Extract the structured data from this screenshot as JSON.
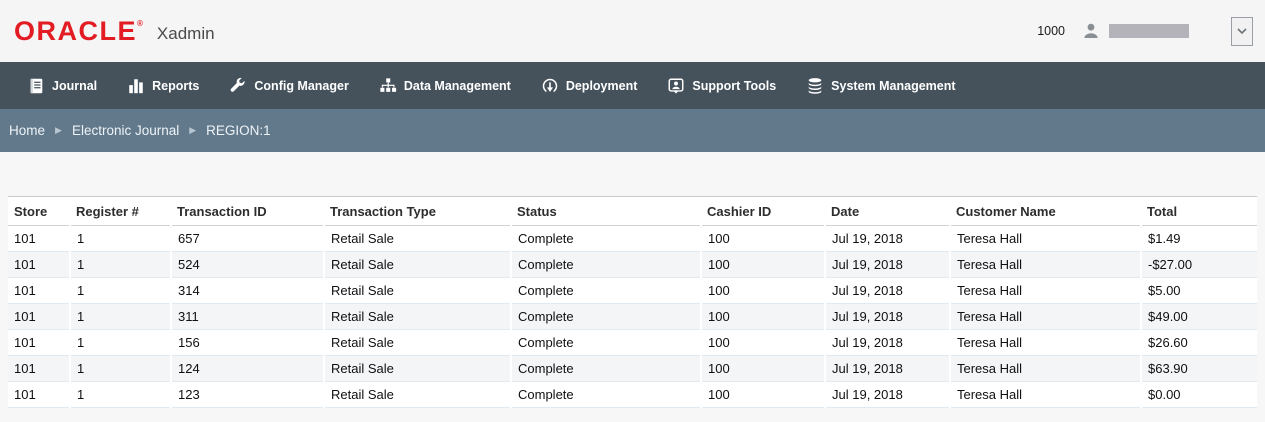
{
  "header": {
    "logo_text": "ORACLE",
    "logo_registered": "®",
    "app_name": "Xadmin",
    "org_id": "1000",
    "user_icon": "person-icon",
    "dropdown_icon": "chevron-down-icon"
  },
  "nav": {
    "items": [
      {
        "label": "Journal",
        "icon": "journal-icon"
      },
      {
        "label": "Reports",
        "icon": "reports-icon"
      },
      {
        "label": "Config Manager",
        "icon": "wrench-icon"
      },
      {
        "label": "Data Management",
        "icon": "sitemap-icon"
      },
      {
        "label": "Deployment",
        "icon": "deploy-icon"
      },
      {
        "label": "Support Tools",
        "icon": "support-icon"
      },
      {
        "label": "System Management",
        "icon": "database-icon"
      }
    ]
  },
  "breadcrumb": {
    "items": [
      "Home",
      "Electronic Journal",
      "REGION:1"
    ],
    "separator": "▶"
  },
  "table": {
    "columns": [
      "Store",
      "Register #",
      "Transaction ID",
      "Transaction Type",
      "Status",
      "Cashier ID",
      "Date",
      "Customer Name",
      "Total"
    ],
    "rows": [
      [
        "101",
        "1",
        "657",
        "Retail Sale",
        "Complete",
        "100",
        "Jul 19, 2018",
        "Teresa Hall",
        "$1.49"
      ],
      [
        "101",
        "1",
        "524",
        "Retail Sale",
        "Complete",
        "100",
        "Jul 19, 2018",
        "Teresa Hall",
        "-$27.00"
      ],
      [
        "101",
        "1",
        "314",
        "Retail Sale",
        "Complete",
        "100",
        "Jul 19, 2018",
        "Teresa Hall",
        "$5.00"
      ],
      [
        "101",
        "1",
        "311",
        "Retail Sale",
        "Complete",
        "100",
        "Jul 19, 2018",
        "Teresa Hall",
        "$49.00"
      ],
      [
        "101",
        "1",
        "156",
        "Retail Sale",
        "Complete",
        "100",
        "Jul 19, 2018",
        "Teresa Hall",
        "$26.60"
      ],
      [
        "101",
        "1",
        "124",
        "Retail Sale",
        "Complete",
        "100",
        "Jul 19, 2018",
        "Teresa Hall",
        "$63.90"
      ],
      [
        "101",
        "1",
        "123",
        "Retail Sale",
        "Complete",
        "100",
        "Jul 19, 2018",
        "Teresa Hall",
        "$0.00"
      ]
    ]
  },
  "colors": {
    "oracle_red": "#e31b23",
    "navbar_bg": "#45525c",
    "breadcrumb_bg": "#62798c",
    "page_bg": "#f7f7f7",
    "row_alt_bg": "#f3f5f7",
    "row_border": "#e2eaf1"
  }
}
